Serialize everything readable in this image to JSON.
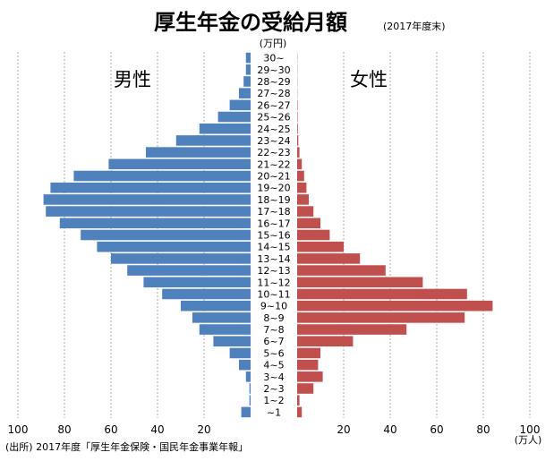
{
  "chart_data": {
    "type": "bar",
    "title": "厚生年金の受給月額",
    "subtitle": "(2017年度末)",
    "unit_label": "(万円)",
    "x_unit": "(万人)",
    "source": "(出所) 2017年度「厚生年金保険・国民年金事業年報」",
    "xlim": [
      0,
      100
    ],
    "ticks": [
      "100",
      "80",
      "60",
      "40",
      "20",
      "20",
      "40",
      "60",
      "80",
      "100"
    ],
    "colors": {
      "male": "#4f81bd",
      "female": "#c0504d"
    },
    "categories": [
      "~1",
      "1~2",
      "2~3",
      "3~4",
      "4~5",
      "5~6",
      "6~7",
      "7~8",
      "8~9",
      "9~10",
      "10~11",
      "11~12",
      "12~13",
      "13~14",
      "14~15",
      "15~16",
      "16~17",
      "17~18",
      "18~19",
      "19~20",
      "20~21",
      "21~22",
      "22~23",
      "23~24",
      "24~25",
      "25~26",
      "26~27",
      "27~28",
      "28~29",
      "29~30",
      "30~"
    ],
    "series": [
      {
        "name": "男性",
        "values": [
          4,
          0.5,
          0.5,
          2,
          5,
          9,
          16,
          22,
          25,
          30,
          38,
          46,
          53,
          60,
          66,
          73,
          82,
          88,
          89,
          86,
          76,
          61,
          45,
          32,
          22,
          14,
          9,
          5,
          3,
          2,
          2
        ]
      },
      {
        "name": "女性",
        "values": [
          2,
          1,
          7,
          11,
          9,
          10,
          24,
          47,
          72,
          84,
          73,
          54,
          38,
          27,
          20,
          14,
          10,
          7,
          5,
          4,
          3,
          2,
          1,
          0.5,
          0.3,
          0.2,
          0.2,
          0.1,
          0.1,
          0.1,
          0.1
        ]
      }
    ]
  }
}
